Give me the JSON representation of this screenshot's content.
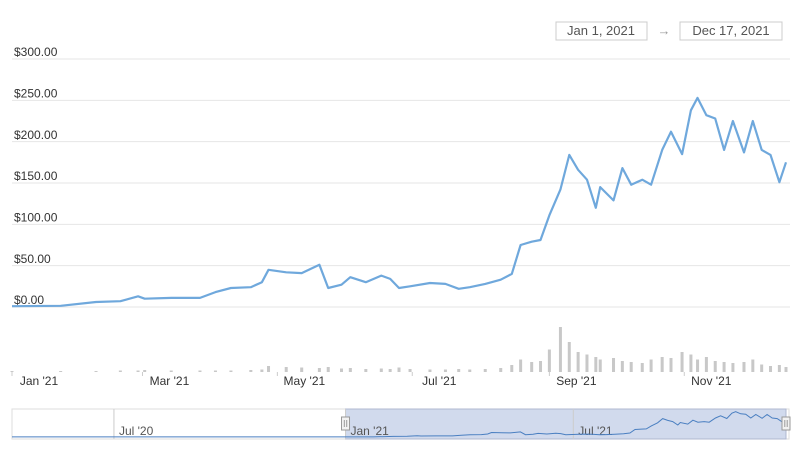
{
  "chart_data": {
    "type": "line",
    "range_inputs": {
      "start": "Jan 1, 2021",
      "separator": "→",
      "end": "Dec 17, 2021"
    },
    "color": "#6fa8dc",
    "volume_color": "#c8c8c8",
    "x": [
      "2021-01-01",
      "2021-01-23",
      "2021-02-08",
      "2021-02-19",
      "2021-02-27",
      "2021-03-02",
      "2021-03-14",
      "2021-03-27",
      "2021-04-03",
      "2021-04-10",
      "2021-04-19",
      "2021-04-24",
      "2021-04-27",
      "2021-05-05",
      "2021-05-12",
      "2021-05-20",
      "2021-05-24",
      "2021-05-30",
      "2021-06-03",
      "2021-06-10",
      "2021-06-17",
      "2021-06-21",
      "2021-06-25",
      "2021-06-30",
      "2021-07-09",
      "2021-07-16",
      "2021-07-22",
      "2021-07-27",
      "2021-08-03",
      "2021-08-10",
      "2021-08-15",
      "2021-08-19",
      "2021-08-24",
      "2021-08-28",
      "2021-09-01",
      "2021-09-06",
      "2021-09-10",
      "2021-09-14",
      "2021-09-18",
      "2021-09-22",
      "2021-09-24",
      "2021-09-30",
      "2021-10-04",
      "2021-10-08",
      "2021-10-13",
      "2021-10-17",
      "2021-10-22",
      "2021-10-26",
      "2021-10-31",
      "2021-11-04",
      "2021-11-07",
      "2021-11-11",
      "2021-11-15",
      "2021-11-19",
      "2021-11-23",
      "2021-11-28",
      "2021-12-02",
      "2021-12-06",
      "2021-12-10",
      "2021-12-14",
      "2021-12-17"
    ],
    "values": [
      1,
      1.5,
      6,
      7,
      13,
      10,
      11,
      11,
      18,
      23,
      24,
      30,
      45,
      42,
      41,
      51,
      23,
      27,
      36,
      30,
      38,
      34,
      23,
      25,
      29,
      28,
      22,
      24,
      28,
      33,
      40,
      75,
      79,
      81,
      111,
      142,
      184,
      166,
      154,
      120,
      145,
      129,
      168,
      148,
      154,
      148,
      190,
      212,
      185,
      238,
      253,
      232,
      228,
      190,
      225,
      187,
      225,
      190,
      184,
      151,
      175
    ],
    "volume": [
      2,
      2,
      2,
      3,
      3,
      4,
      3,
      3,
      3,
      3,
      4,
      5,
      12,
      10,
      9,
      8,
      10,
      7,
      8,
      6,
      7,
      6,
      9,
      6,
      5,
      5,
      6,
      5,
      6,
      8,
      14,
      25,
      20,
      22,
      45,
      90,
      60,
      40,
      35,
      30,
      25,
      28,
      22,
      20,
      18,
      25,
      30,
      28,
      40,
      35,
      25,
      30,
      22,
      20,
      18,
      20,
      25,
      15,
      12,
      14,
      10
    ],
    "volume_ylim": [
      0,
      100
    ],
    "xlim": [
      "2021-01-01",
      "2021-12-17"
    ],
    "xticks": [
      {
        "value": "2021-01-01",
        "label": "Jan '21"
      },
      {
        "value": "2021-03-01",
        "label": "Mar '21"
      },
      {
        "value": "2021-05-01",
        "label": "May '21"
      },
      {
        "value": "2021-07-01",
        "label": "Jul '21"
      },
      {
        "value": "2021-09-01",
        "label": "Sep '21"
      },
      {
        "value": "2021-11-01",
        "label": "Nov '21"
      }
    ],
    "ylim": [
      0,
      300
    ],
    "yticks": [
      {
        "value": 0,
        "label": "$0.00"
      },
      {
        "value": 50,
        "label": "$50.00"
      },
      {
        "value": 100,
        "label": "$100.00"
      },
      {
        "value": 150,
        "label": "$150.00"
      },
      {
        "value": 200,
        "label": "$200.00"
      },
      {
        "value": 250,
        "label": "$250.00"
      },
      {
        "value": 300,
        "label": "$300.00"
      }
    ],
    "grid": true,
    "navigator": {
      "x": [
        "2020-04-11",
        "2020-07-01",
        "2020-10-01",
        "2020-12-01"
      ],
      "values": [
        0.5,
        0.5,
        1,
        1.5
      ],
      "xlim": [
        "2020-04-11",
        "2021-12-17"
      ],
      "ylim": [
        0,
        260
      ],
      "xticks": [
        {
          "value": "2020-07-01",
          "label": "Jul '20"
        },
        {
          "value": "2021-01-01",
          "label": "Jan '21"
        },
        {
          "value": "2021-07-01",
          "label": "Jul '21"
        }
      ]
    }
  }
}
